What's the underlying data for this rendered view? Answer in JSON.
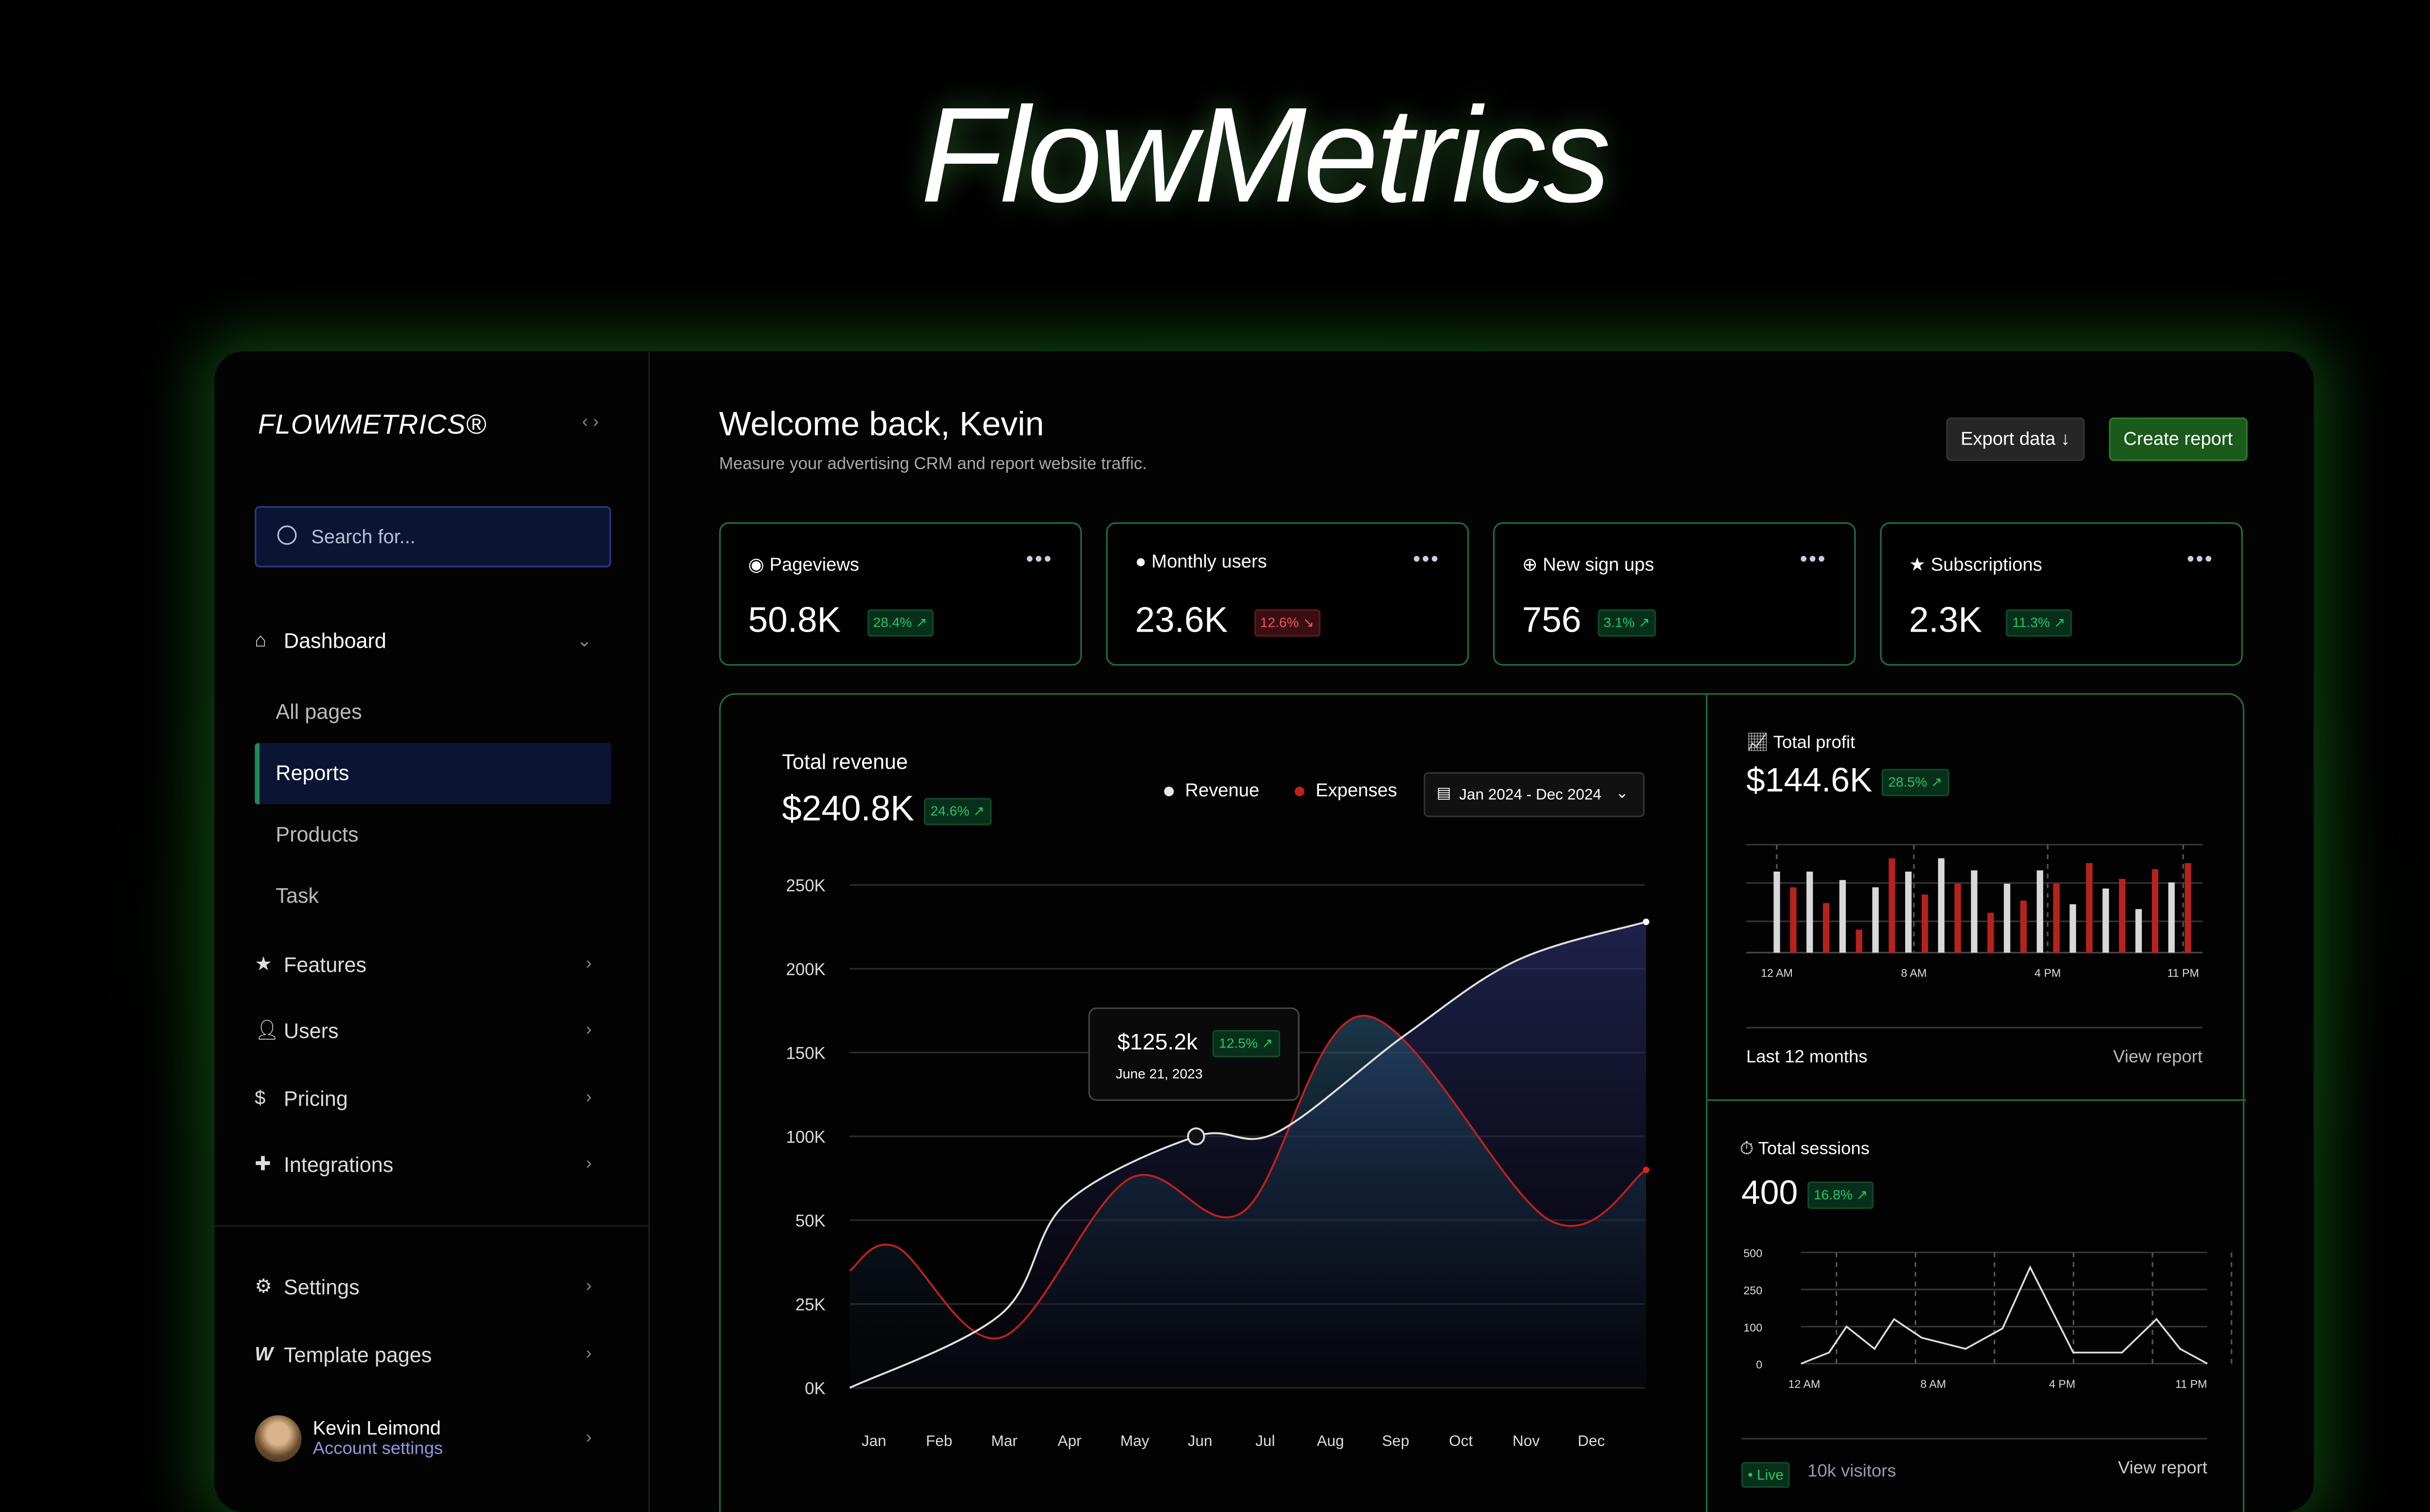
{
  "hero_title": "FlowMetrics",
  "sidebar": {
    "brand": "FLOWMETRICS®",
    "collapse_icon": "‹ ›",
    "search_placeholder": "Search for...",
    "dashboard": "Dashboard",
    "subitems": [
      "All pages",
      "Reports",
      "Products",
      "Task"
    ],
    "active_subitem": "Reports",
    "items": [
      {
        "label": "Features",
        "icon": "star-icon"
      },
      {
        "label": "Users",
        "icon": "user-icon"
      },
      {
        "label": "Pricing",
        "icon": "dollar-icon"
      },
      {
        "label": "Integrations",
        "icon": "puzzle-icon"
      }
    ],
    "bottom_items": [
      {
        "label": "Settings",
        "icon": "gear-icon"
      },
      {
        "label": "Template pages",
        "icon": "webflow-icon"
      }
    ],
    "user": {
      "name": "Kevin Leimond",
      "link": "Account settings"
    }
  },
  "header": {
    "title": "Welcome back, Kevin",
    "subtitle": "Measure your advertising CRM and report website traffic.",
    "export_label": "Export data",
    "create_label": "Create report"
  },
  "stats": [
    {
      "label": "Pageviews",
      "value": "50.8K",
      "change": "28.4% ↗",
      "trend": "up"
    },
    {
      "label": "Monthly users",
      "value": "23.6K",
      "change": "12.6% ↘",
      "trend": "down"
    },
    {
      "label": "New sign ups",
      "value": "756",
      "change": "3.1% ↗",
      "trend": "up"
    },
    {
      "label": "Subscriptions",
      "value": "2.3K",
      "change": "11.3% ↗",
      "trend": "up"
    }
  ],
  "revenue": {
    "label": "Total revenue",
    "value": "$240.8K",
    "change": "24.6% ↗",
    "legend_revenue": "Revenue",
    "legend_expenses": "Expenses",
    "date_range": "Jan 2024 - Dec 2024",
    "tooltip": {
      "value": "$125.2k",
      "change": "12.5% ↗",
      "date": "June 21, 2023"
    }
  },
  "profit": {
    "label": "Total profit",
    "value": "$144.6K",
    "change": "28.5% ↗",
    "footer_left": "Last 12 months",
    "footer_right": "View report"
  },
  "sessions": {
    "label": "Total sessions",
    "value": "400",
    "change": "16.8% ↗",
    "live": "• Live",
    "visitors": "10k visitors",
    "footer_right": "View report"
  },
  "colors": {
    "accent": "#1f8a5a",
    "revenue": "#e8e8e8",
    "expenses": "#c0201c",
    "green": "#28c46c"
  },
  "chart_data": [
    {
      "type": "area",
      "title": "Total revenue",
      "categories": [
        "Jan",
        "Feb",
        "Mar",
        "Apr",
        "May",
        "Jun",
        "Jul",
        "Aug",
        "Sep",
        "Oct",
        "Nov",
        "Dec"
      ],
      "yticks": [
        "0K",
        "25K",
        "50K",
        "100K",
        "150K",
        "200K",
        "250K"
      ],
      "ytick_values": [
        0,
        25,
        50,
        100,
        150,
        200,
        250
      ],
      "series": [
        {
          "name": "Revenue",
          "points": [
            [
              -0.37,
              0
            ],
            [
              1.95,
              22
            ],
            [
              2.94,
              60
            ],
            [
              4.94,
              100
            ],
            [
              6.16,
              102
            ],
            [
              8.13,
              160
            ],
            [
              9.86,
              205
            ],
            [
              11.84,
              228
            ]
          ]
        },
        {
          "name": "Expenses",
          "points": [
            [
              -0.37,
              35
            ],
            [
              0.35,
              42
            ],
            [
              1.95,
              15
            ],
            [
              3.93,
              75
            ],
            [
              5.66,
              55
            ],
            [
              7.52,
              172
            ],
            [
              10.36,
              50
            ],
            [
              11.84,
              80
            ]
          ]
        }
      ]
    },
    {
      "type": "bar",
      "title": "Total profit",
      "xticks": [
        "12 AM",
        "8 AM",
        "4 PM",
        "11 PM"
      ],
      "ylim": [
        0,
        100
      ],
      "values": [
        67,
        54,
        67,
        41,
        60,
        19,
        54,
        78,
        67,
        48,
        78,
        57,
        68,
        33,
        57,
        43,
        68,
        57,
        40,
        74,
        53,
        61,
        36,
        69,
        58,
        74
      ],
      "colors": [
        "white",
        "red"
      ]
    },
    {
      "type": "line",
      "title": "Total sessions",
      "xticks": [
        "12 AM",
        "8 AM",
        "4 PM",
        "11 PM"
      ],
      "yticks": [
        "500",
        "250",
        "100",
        "0"
      ],
      "ytick_values": [
        500,
        250,
        100,
        0
      ],
      "values": [
        0,
        30,
        100,
        40,
        130,
        70,
        40,
        95,
        400,
        30,
        30,
        130,
        40,
        0
      ]
    }
  ]
}
